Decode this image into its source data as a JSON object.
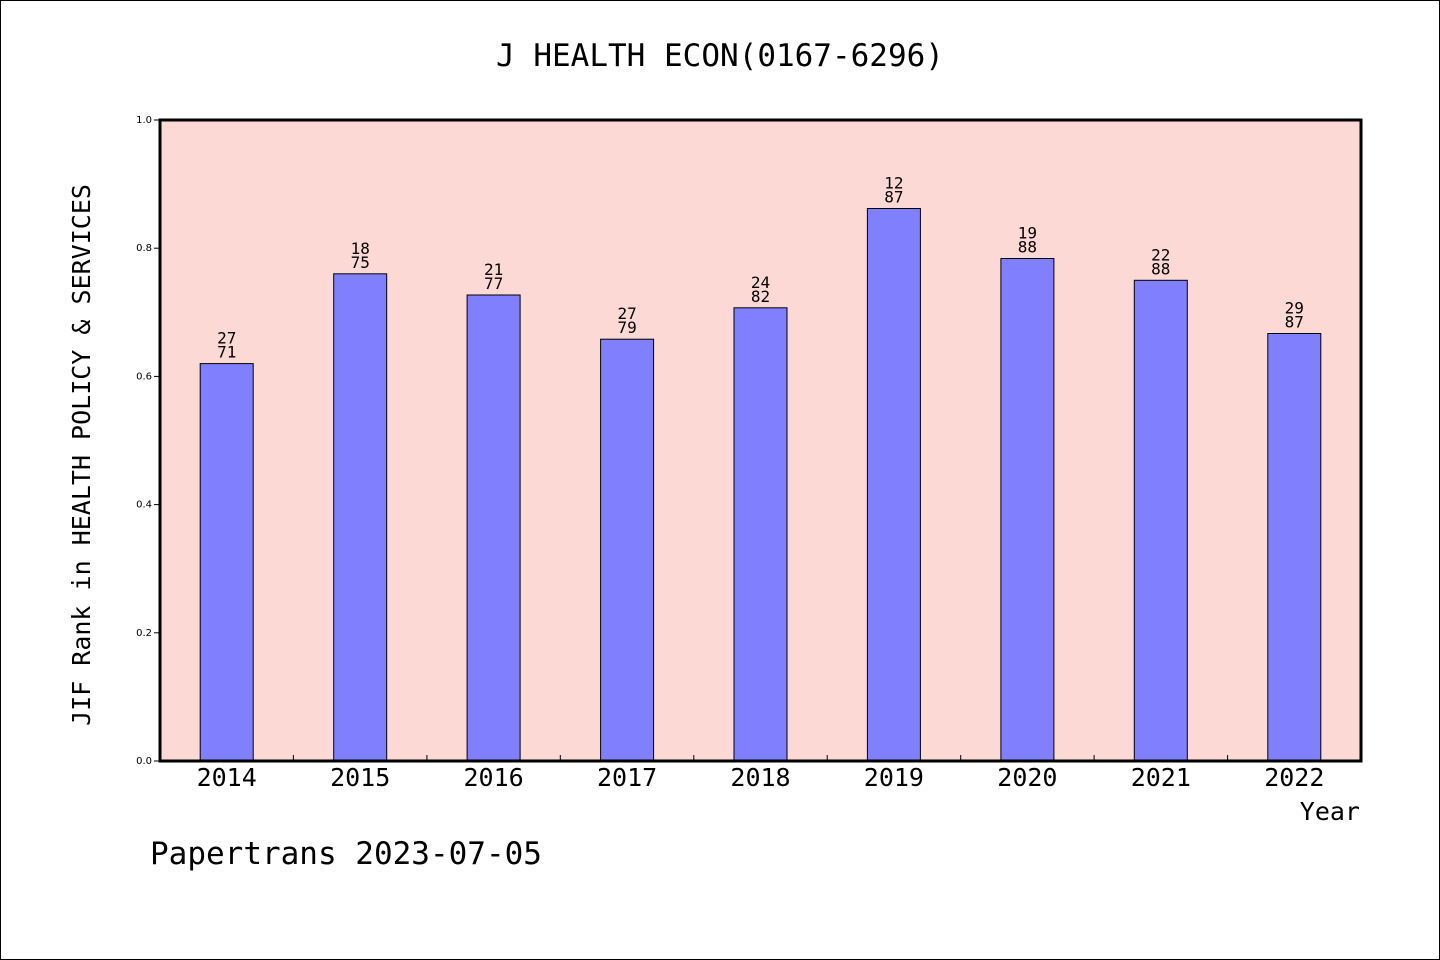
{
  "chart_data": {
    "type": "bar",
    "title": "J HEALTH ECON(0167-6296)",
    "xlabel": "Year",
    "ylabel": "JIF Rank in HEALTH POLICY & SERVICES",
    "categories": [
      "2014",
      "2015",
      "2016",
      "2017",
      "2018",
      "2019",
      "2020",
      "2021",
      "2022"
    ],
    "values": [
      0.62,
      0.76,
      0.727,
      0.658,
      0.707,
      0.862,
      0.784,
      0.75,
      0.667
    ],
    "bar_labels": [
      [
        "27",
        "71"
      ],
      [
        "18",
        "75"
      ],
      [
        "21",
        "77"
      ],
      [
        "27",
        "79"
      ],
      [
        "24",
        "82"
      ],
      [
        "12",
        "87"
      ],
      [
        "19",
        "88"
      ],
      [
        "22",
        "88"
      ],
      [
        "29",
        "87"
      ]
    ],
    "ylim": [
      0,
      1.0
    ],
    "yticks": [
      "0.0",
      "0.2",
      "0.4",
      "0.6",
      "0.8",
      "1.0"
    ],
    "grid": false,
    "colors": {
      "plot_background": "#fdd9d6",
      "bar_fill": "#8080ff",
      "bar_edge": "#000000"
    }
  },
  "footer": {
    "watermark": "Papertrans 2023-07-05"
  }
}
